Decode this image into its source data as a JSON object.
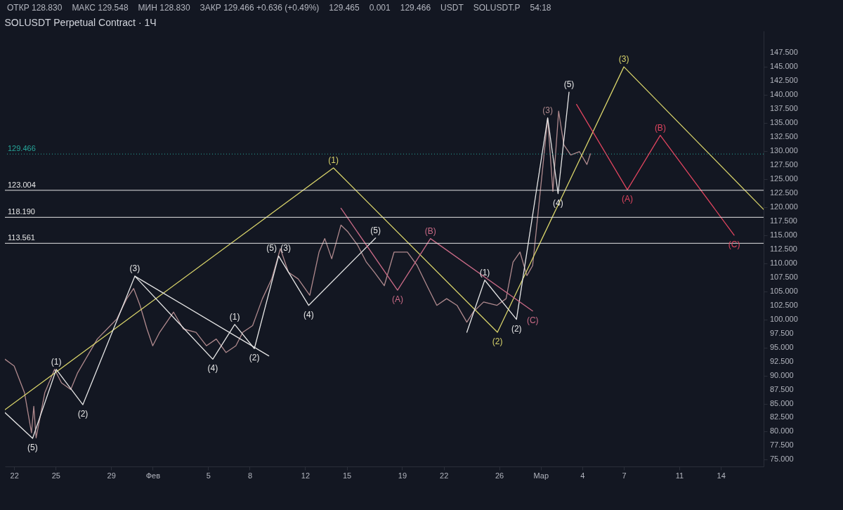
{
  "chart_data": {
    "type": "line",
    "title": "SOLUSDT Perpetual Contract · 1Ч",
    "annotations": [
      "ОТКР 128.830",
      "МАКС 129.548",
      "МИН 128.830",
      "ЗАКР 129.466 +0.636 (+0.49%)",
      "129.465",
      "0.001",
      "129.466",
      "USDT",
      "SOLUSDT.P",
      "54:18",
      {
        "text": "(1)",
        "x": "--02-14T01:00",
        "y": 127.0
      },
      {
        "text": "(2)",
        "x": "--02-25T21:00",
        "y": 97.7
      },
      {
        "text": "(3)",
        "x": "--03-07T00:00",
        "y": 145.0
      },
      {
        "text": "(A)",
        "x": "--03-07T06:00",
        "y": 123.1
      },
      {
        "text": "(B)",
        "x": "--03-09T15:00",
        "y": 132.8
      },
      {
        "text": "(C)",
        "x": "--03-14T23:00",
        "y": 115.0
      },
      {
        "text": "(A)",
        "x": "--02-18T16:00",
        "y": 105.2
      },
      {
        "text": "(B)",
        "x": "--02-21T01:00",
        "y": 114.4
      },
      {
        "text": "(C)",
        "x": "--02-28T10:00",
        "y": 101.5
      },
      {
        "text": "(5)",
        "x": "--01-23T08:00",
        "y": 78.8
      },
      {
        "text": "(1)",
        "x": "--01-25T01:00",
        "y": 91.1
      },
      {
        "text": "(2)",
        "x": "--01-26T23:00",
        "y": 84.8
      },
      {
        "text": "(3)",
        "x": "--01-30T17:00",
        "y": 107.7
      },
      {
        "text": "(4)",
        "x": "--02-05T08:00",
        "y": 92.9
      },
      {
        "text": "(1)",
        "x": "--02-06T22:00",
        "y": 99.1
      },
      {
        "text": "(2)",
        "x": "--02-08T08:00",
        "y": 94.8
      },
      {
        "text": "(5)",
        "x": "--02-10T02:00",
        "y": 111.3
      },
      {
        "text": "(3)",
        "x": "--02-10T02:00",
        "y": 111.3
      },
      {
        "text": "(4)",
        "x": "--02-12T06:00",
        "y": 102.5
      },
      {
        "text": "(5)",
        "x": "--02-17T02:00",
        "y": 114.5
      },
      {
        "text": "(1)",
        "x": "--02-24T23:00",
        "y": 107.0
      },
      {
        "text": "(2)",
        "x": "--02-27T06:00",
        "y": 100.0
      },
      {
        "text": "(3)",
        "x": "--03-01T12:00",
        "y": 135.9
      },
      {
        "text": "(4)",
        "x": "--03-02T06:00",
        "y": 122.4
      },
      {
        "text": "(5)",
        "x": "--03-03T01:00",
        "y": 140.5
      }
    ],
    "xlim": [
      "--01-21T08:00",
      "--03-17T02:00"
    ],
    "xticks": [
      {
        "value": "--01-22",
        "label": "22"
      },
      {
        "value": "--01-25",
        "label": "25"
      },
      {
        "value": "--01-29",
        "label": "29"
      },
      {
        "value": "--02-01",
        "label": "Фев"
      },
      {
        "value": "--02-05",
        "label": "5"
      },
      {
        "value": "--02-08",
        "label": "8"
      },
      {
        "value": "--02-12",
        "label": "12"
      },
      {
        "value": "--02-15",
        "label": "15"
      },
      {
        "value": "--02-19",
        "label": "19"
      },
      {
        "value": "--02-22",
        "label": "22"
      },
      {
        "value": "--02-26",
        "label": "26"
      },
      {
        "value": "--03-01",
        "label": "Мар"
      },
      {
        "value": "--03-04",
        "label": "4"
      },
      {
        "value": "--03-07",
        "label": "7"
      },
      {
        "value": "--03-11",
        "label": "11"
      },
      {
        "value": "--03-14",
        "label": "14"
      }
    ],
    "ylim": [
      73.8,
      151.4
    ],
    "yticks": [
      {
        "value": 75,
        "label": "75.000"
      },
      {
        "value": 77.5,
        "label": "77.500"
      },
      {
        "value": 80,
        "label": "80.000"
      },
      {
        "value": 82.5,
        "label": "82.500"
      },
      {
        "value": 85,
        "label": "85.000"
      },
      {
        "value": 87.5,
        "label": "87.500"
      },
      {
        "value": 90,
        "label": "90.000"
      },
      {
        "value": 92.5,
        "label": "92.500"
      },
      {
        "value": 95,
        "label": "95.000"
      },
      {
        "value": 97.5,
        "label": "97.500"
      },
      {
        "value": 100,
        "label": "100.000"
      },
      {
        "value": 102.5,
        "label": "102.500"
      },
      {
        "value": 105,
        "label": "105.000"
      },
      {
        "value": 107.5,
        "label": "107.500"
      },
      {
        "value": 110,
        "label": "110.000"
      },
      {
        "value": 112.5,
        "label": "112.500"
      },
      {
        "value": 115,
        "label": "115.000"
      },
      {
        "value": 117.5,
        "label": "117.500"
      },
      {
        "value": 120,
        "label": "120.000"
      },
      {
        "value": 122.5,
        "label": "122.500"
      },
      {
        "value": 125,
        "label": "125.000"
      },
      {
        "value": 127.5,
        "label": "127.500"
      },
      {
        "value": 130,
        "label": "130.000"
      },
      {
        "value": 132.5,
        "label": "132.500"
      },
      {
        "value": 135,
        "label": "135.000"
      },
      {
        "value": 137.5,
        "label": "137.500"
      },
      {
        "value": 140,
        "label": "140.000"
      },
      {
        "value": 142.5,
        "label": "142.500"
      },
      {
        "value": 145,
        "label": "145.000"
      },
      {
        "value": 147.5,
        "label": "147.500"
      }
    ],
    "ref_lines": [
      {
        "axis": "y",
        "value": 123.004,
        "label": "123.004",
        "color": "#e6e6e6"
      },
      {
        "axis": "y",
        "value": 118.19,
        "label": "118.190",
        "color": "#e6e6e6"
      },
      {
        "axis": "y",
        "value": 113.561,
        "label": "113.561",
        "color": "#e6e6e6"
      },
      {
        "axis": "y",
        "value": 129.466,
        "label": "129.466",
        "color": "#26a69a",
        "line_style": "dotted"
      }
    ],
    "series": [
      {
        "color": "#b08a8e",
        "x": [
          "--01-21T08:00",
          "--01-22T00:00",
          "--01-22T18:00",
          "--01-23T06:00",
          "--01-23T10:00",
          "--01-23T14:00",
          "--01-24T05:00",
          "--01-24T22:00",
          "--01-25T10:00",
          "--01-26T02:00",
          "--01-26T14:00",
          "--01-27T07:00",
          "--01-28T00:00",
          "--01-28T17:00",
          "--01-29T10:00",
          "--01-30T03:00",
          "--01-30T15:00",
          "--01-31T02:00",
          "--01-31T14:00",
          "--02-01T00:00",
          "--02-01T12:00",
          "--02-02T12:00",
          "--02-03T05:00",
          "--02-04T03:00",
          "--02-04T21:00",
          "--02-05T14:00",
          "--02-06T07:00",
          "--02-07T00:00",
          "--02-07T12:00",
          "--02-08T05:00",
          "--02-08T22:00",
          "--02-09T14:00",
          "--02-10T05:00",
          "--02-10T19:00",
          "--02-11T12:00",
          "--02-12T08:00",
          "--02-13T00:00",
          "--02-13T10:00",
          "--02-13T22:00",
          "--02-14T14:00",
          "--02-15T02:00",
          "--02-15T19:00",
          "--02-16T10:00",
          "--02-17T00:00",
          "--02-17T17:00",
          "--02-18T10:00",
          "--02-19T09:00",
          "--02-20T02:00",
          "--02-20T19:00",
          "--02-21T12:00",
          "--02-22T05:00",
          "--02-22T23:00",
          "--02-23T16:00",
          "--02-24T03:00",
          "--02-24T21:00",
          "--02-25T20:00",
          "--02-26T12:00",
          "--02-27T00:00",
          "--02-27T12:00",
          "--02-28T00:00",
          "--02-28T10:00",
          "--02-28T16:00",
          "--03-01T04:00",
          "--03-01T12:00",
          "--03-01T21:00",
          "--03-02T07:00",
          "--03-02T16:00",
          "--03-03T04:00",
          "--03-03T19:00",
          "--03-04T08:00",
          "--03-04T14:00"
        ],
        "values": [
          92.9,
          91.7,
          86.9,
          79.8,
          84.5,
          78.9,
          86.9,
          91.1,
          88.7,
          87.5,
          90.5,
          93.5,
          96.5,
          98.3,
          100.1,
          103.7,
          105.5,
          102.5,
          98.3,
          95.3,
          97.7,
          101.3,
          98.3,
          97.7,
          95.3,
          96.5,
          94.1,
          95.3,
          97.7,
          98.9,
          103.7,
          107.2,
          112.6,
          108.4,
          107.2,
          104.3,
          112.0,
          114.4,
          110.8,
          116.8,
          115.6,
          113.2,
          110.2,
          108.4,
          106.0,
          112.0,
          112.0,
          109.6,
          106.0,
          102.5,
          103.7,
          102.5,
          99.5,
          101.3,
          103.1,
          102.5,
          103.7,
          110.2,
          112.0,
          107.8,
          109.6,
          115.6,
          127.6,
          135.9,
          122.8,
          137.1,
          131.1,
          129.3,
          129.9,
          127.6,
          129.5
        ]
      },
      {
        "color": "#d8d36a",
        "x": [
          "--01-21T08:00",
          "--02-14T01:00",
          "--02-25T21:00",
          "--03-07T00:00",
          "--03-17T02:00"
        ],
        "values": [
          83.9,
          127.0,
          97.7,
          145.0,
          119.6
        ]
      },
      {
        "color": "#e6e6e6",
        "x": [
          "--01-21T08:00",
          "--01-23T08:00",
          "--01-25T01:00",
          "--01-26T23:00",
          "--01-30T17:00",
          "--02-05T08:00",
          "--02-06T22:00",
          "--02-08T08:00",
          "--02-10T02:00",
          "--02-12T06:00",
          "--02-17T02:00"
        ],
        "values": [
          83.4,
          78.8,
          91.1,
          84.8,
          107.7,
          92.9,
          99.1,
          94.8,
          111.3,
          102.5,
          114.5
        ]
      },
      {
        "color": "#e6e6e6",
        "x": [
          "--01-30T17:00",
          "--02-09T09:00"
        ],
        "values": [
          107.7,
          93.5
        ]
      },
      {
        "color": "#e6e6e6",
        "x": [
          "--02-23T16:00",
          "--02-24T23:00",
          "--02-27T06:00",
          "--03-01T12:00",
          "--03-02T06:00",
          "--03-03T01:00"
        ],
        "values": [
          97.7,
          107.0,
          100.0,
          135.9,
          122.4,
          140.5
        ]
      },
      {
        "color": "#c96a86",
        "x": [
          "--02-14T14:00",
          "--02-18T16:00",
          "--02-21T01:00",
          "--02-28T10:00"
        ],
        "values": [
          119.8,
          105.2,
          114.4,
          101.5
        ]
      },
      {
        "color": "#e0455f",
        "x": [
          "--03-03T14:00",
          "--03-07T06:00",
          "--03-09T15:00",
          "--03-14T23:00"
        ],
        "values": [
          138.3,
          123.1,
          132.8,
          115.0
        ]
      }
    ]
  }
}
